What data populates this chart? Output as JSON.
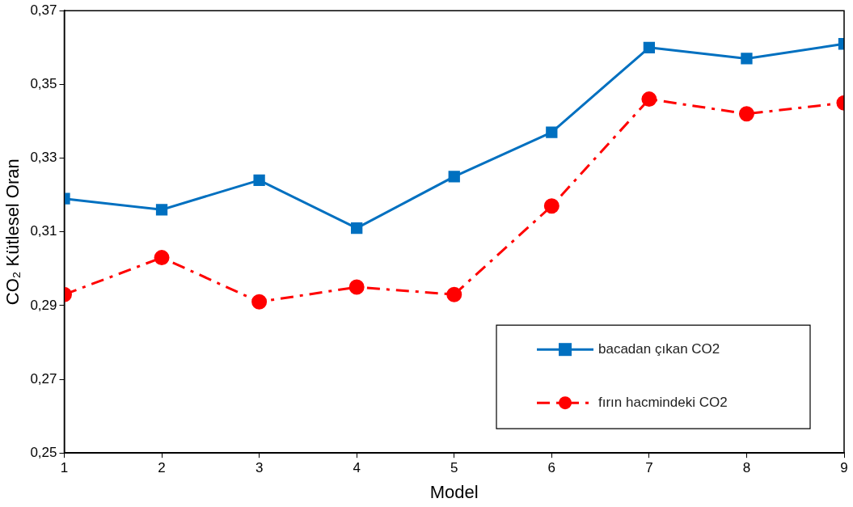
{
  "chart_data": {
    "type": "line",
    "xlabel": "Model",
    "ylabel": "CO₂ Kütlesel Oran",
    "x": [
      1,
      2,
      3,
      4,
      5,
      6,
      7,
      8,
      9
    ],
    "series": [
      {
        "name": "bacadan çıkan CO2",
        "color": "#0070c0",
        "marker": "square",
        "line_style": "solid",
        "values": [
          0.319,
          0.316,
          0.324,
          0.311,
          0.325,
          0.337,
          0.36,
          0.357,
          0.361
        ]
      },
      {
        "name": "fırın hacmindeki CO2",
        "color": "#ff0000",
        "marker": "circle",
        "line_style": "dashed",
        "values": [
          0.293,
          0.303,
          0.291,
          0.295,
          0.293,
          0.317,
          0.346,
          0.342,
          0.345
        ]
      }
    ],
    "xlim": [
      1,
      9
    ],
    "xticks": [
      1,
      2,
      3,
      4,
      5,
      6,
      7,
      8,
      9
    ],
    "ylim": [
      0.25,
      0.37
    ],
    "yticks": [
      {
        "value": 0.25,
        "label": "0,25"
      },
      {
        "value": 0.27,
        "label": "0,27"
      },
      {
        "value": 0.29,
        "label": "0,29"
      },
      {
        "value": 0.31,
        "label": "0,31"
      },
      {
        "value": 0.33,
        "label": "0,33"
      },
      {
        "value": 0.35,
        "label": "0,35"
      },
      {
        "value": 0.37,
        "label": "0,37"
      }
    ],
    "grid": false,
    "legend": "bottom right"
  }
}
